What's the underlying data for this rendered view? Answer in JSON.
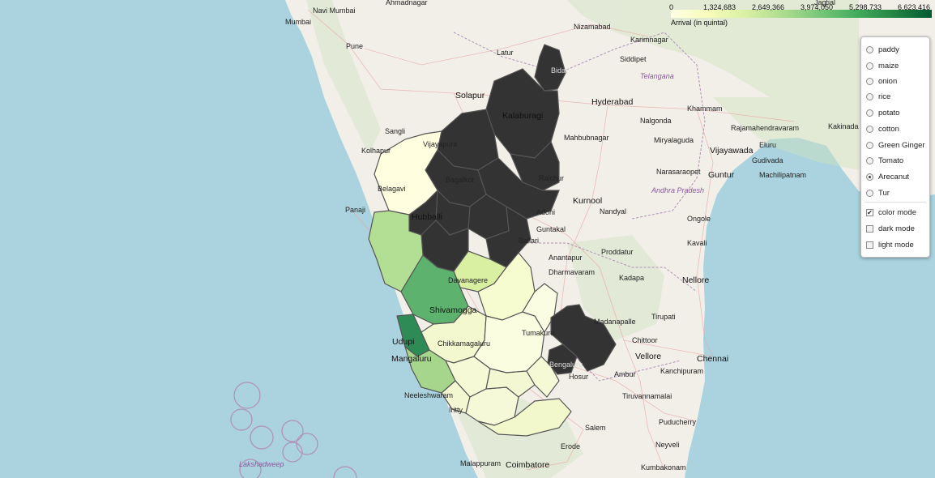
{
  "legend": {
    "ticks": [
      "0",
      "1,324,683",
      "2,649,366",
      "3,974,050",
      "5,298,733",
      "6,623,416"
    ],
    "title": "Arrival (in quintal)"
  },
  "layers": {
    "crops": [
      "paddy",
      "maize",
      "onion",
      "rice",
      "potato",
      "cotton",
      "Green Ginger",
      "Tomato",
      "Arecanut",
      "Tur"
    ],
    "selected_crop": "Arecanut",
    "modes": [
      {
        "label": "color mode",
        "checked": true
      },
      {
        "label": "dark mode",
        "checked": false
      },
      {
        "label": "light mode",
        "checked": false
      }
    ]
  },
  "map_labels": {
    "cities": [
      "Navi Mumbai",
      "Mumbai",
      "Ahmadnagar",
      "Pune",
      "Latur",
      "Nizamabad",
      "Karimnagar",
      "Siddipet",
      "Telangana",
      "Solapur",
      "Hyderabad",
      "Khammam",
      "Nalgonda",
      "Rajamahendravaram",
      "Kakinada",
      "Sangli",
      "Kolhapur",
      "Mahbubnagar",
      "Miryalaguda",
      "Vijayawada",
      "Eluru",
      "Gudivada",
      "Narasaraopet",
      "Guntur",
      "Machilipatnam",
      "Andhra Pradesh",
      "Kurnool",
      "Panaji",
      "Nandyal",
      "Ongole",
      "Adoni",
      "Guntakal",
      "Kavali",
      "Anantapur",
      "Proddatur",
      "Dharmavaram",
      "Kadapa",
      "Nellore",
      "Tirupati",
      "Chittoor",
      "Chennai",
      "Vellore",
      "Hosur",
      "Ambur",
      "Kanchipuram",
      "Tiruvannamalai",
      "Puducherry",
      "Salem",
      "Neyveli",
      "Erode",
      "Kumbakonam",
      "Malappuram",
      "Coimbatore",
      "Neeleshwaram",
      "Iritty",
      "Lakshadweep",
      "Jagtial"
    ],
    "districts": [
      "Kalaburagi",
      "Bidar",
      "Vijayapura",
      "Bagalkot",
      "Raichur",
      "Belagavi",
      "Hubballi",
      "Davanagere",
      "Shivamogga",
      "Udupi",
      "Mangaluru",
      "Tumakuru",
      "Chikkamagaluru",
      "Bengaluru",
      "Ballari",
      "Madanapalle"
    ]
  },
  "colors": {
    "sea": "#aad3df",
    "land": "#f2efe9",
    "high": "#333333",
    "ramp": [
      "#ffffe5",
      "#f7fcb9",
      "#d9f0a3",
      "#addd8e",
      "#78c679",
      "#41ab5d",
      "#238443"
    ]
  }
}
